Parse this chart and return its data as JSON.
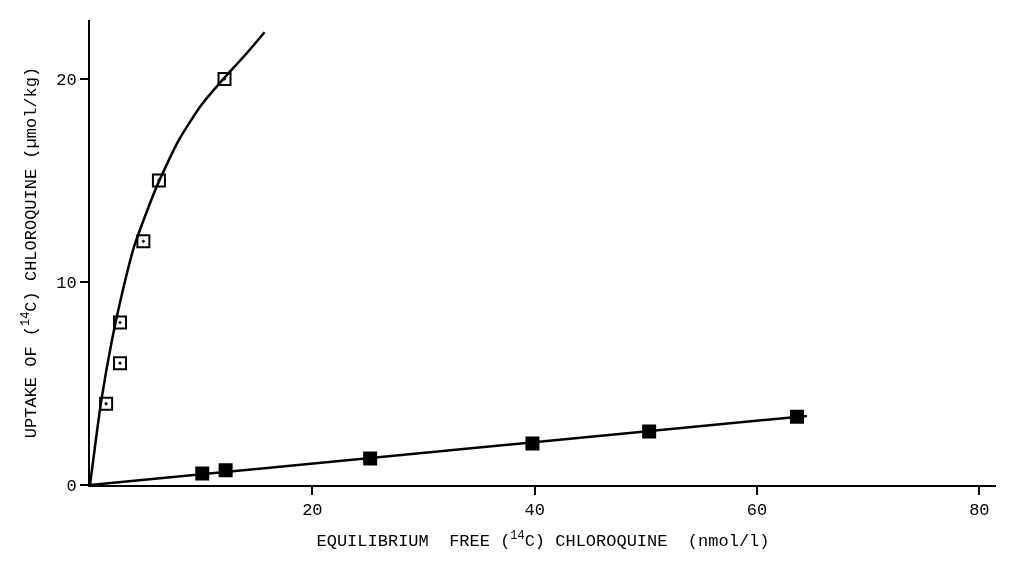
{
  "chart_data": {
    "type": "scatter",
    "xlabel": "EQUILIBRIUM  FREE ($^{14}$C) CHLOROQUINE  (nmol/l)",
    "ylabel": "UPTAKE OF ($^{14}$C) CHLOROQUINE (µmol/kg)",
    "xlim": [
      0,
      81.5
    ],
    "xticks": [
      20,
      40,
      60,
      80
    ],
    "ylim": [
      0,
      22.9
    ],
    "yticks": [
      0,
      10,
      20
    ],
    "legend": false,
    "marker": "square",
    "series": [
      {
        "color": "#000000",
        "marker": "square-open",
        "x": [
          1.45,
          2.7,
          2.7,
          4.8,
          6.2,
          12.1
        ],
        "values": [
          4.0,
          6.0,
          8.0,
          12.0,
          15.0,
          20.0
        ]
      },
      {
        "color": "#000000",
        "x": [
          10.1,
          12.2,
          25.2,
          39.8,
          50.3,
          63.6
        ],
        "values": [
          0.57,
          0.73,
          1.31,
          2.04,
          2.63,
          3.36
        ]
      },
      {
        "type": "line",
        "color": "#000000",
        "marker": "none",
        "x": [
          0,
          1,
          2,
          3,
          4,
          6,
          8,
          10,
          12,
          14,
          15.7
        ],
        "values": [
          0,
          4.1,
          7.2,
          9.7,
          11.8,
          14.7,
          17.0,
          18.7,
          20.0,
          21.2,
          22.3
        ]
      },
      {
        "type": "line",
        "color": "#000000",
        "marker": "none",
        "x": [
          0,
          64.5
        ],
        "values": [
          0,
          3.4
        ]
      }
    ]
  }
}
